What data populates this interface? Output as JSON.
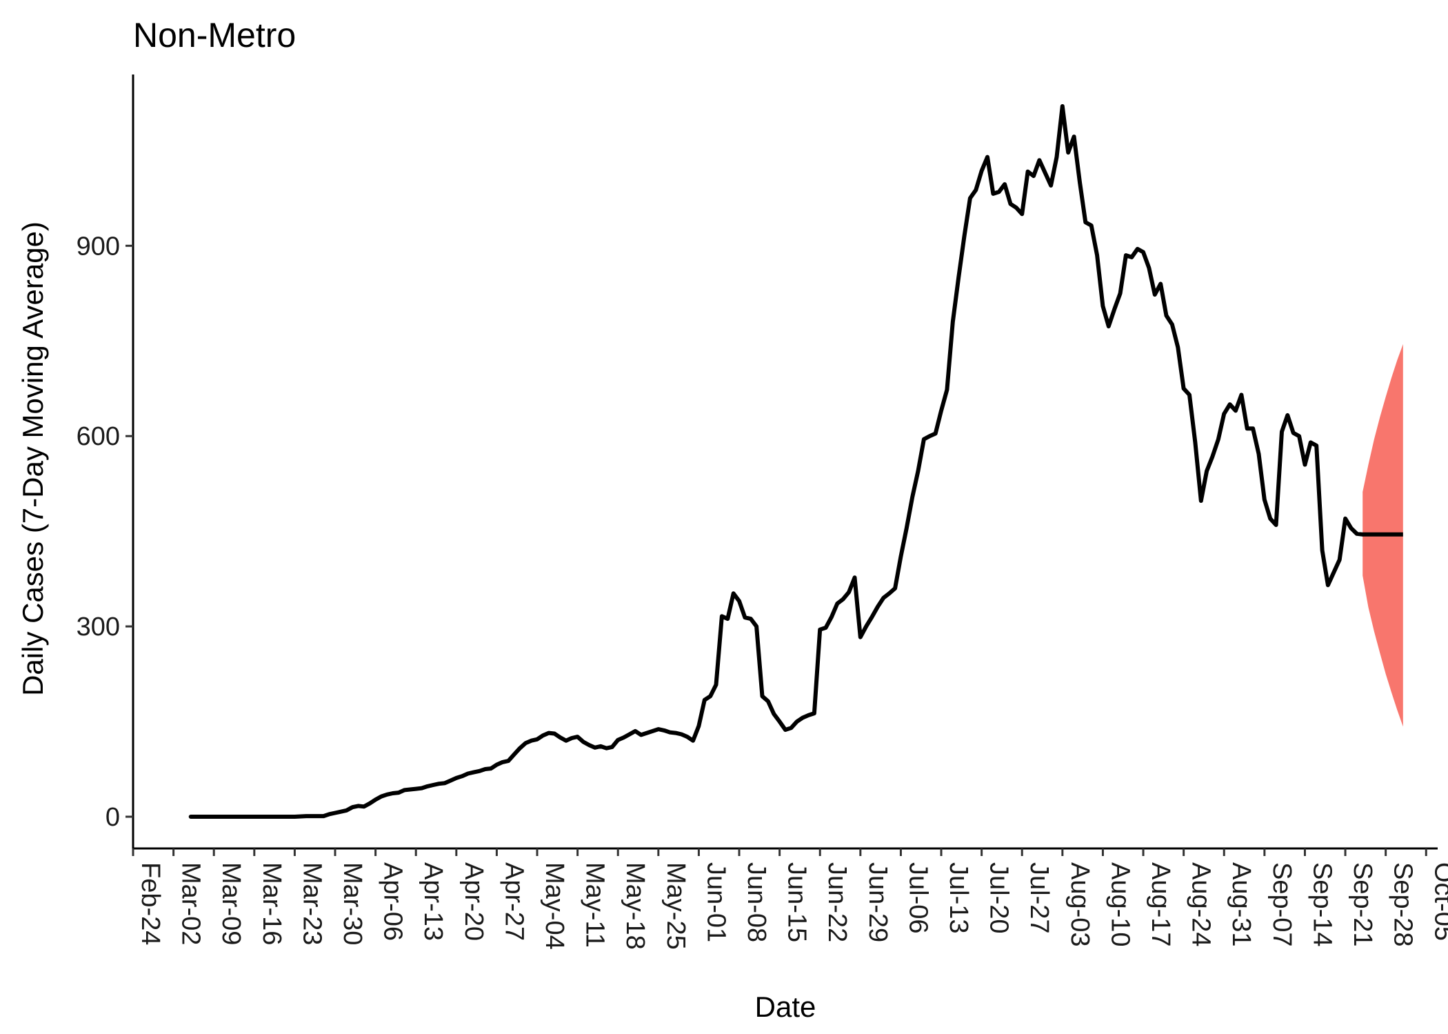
{
  "chart_data": {
    "type": "line",
    "title": "Non-Metro",
    "xlabel": "Date",
    "ylabel": "Daily Cases (7-Day Moving Average)",
    "xlim": [
      "2020-02-24",
      "2020-10-07"
    ],
    "ylim": [
      -50,
      1170
    ],
    "yticks": [
      0,
      300,
      600,
      900
    ],
    "xtick_labels": [
      "Feb-24",
      "Mar-02",
      "Mar-09",
      "Mar-16",
      "Mar-23",
      "Mar-30",
      "Apr-06",
      "Apr-13",
      "Apr-20",
      "Apr-27",
      "May-04",
      "May-11",
      "May-18",
      "May-25",
      "Jun-01",
      "Jun-08",
      "Jun-15",
      "Jun-22",
      "Jun-29",
      "Jul-06",
      "Jul-13",
      "Jul-20",
      "Jul-27",
      "Aug-03",
      "Aug-10",
      "Aug-17",
      "Aug-24",
      "Aug-31",
      "Sep-07",
      "Sep-14",
      "Sep-21",
      "Sep-28",
      "Oct-05"
    ],
    "xtick_dates": [
      "2020-02-24",
      "2020-03-02",
      "2020-03-09",
      "2020-03-16",
      "2020-03-23",
      "2020-03-30",
      "2020-04-06",
      "2020-04-13",
      "2020-04-20",
      "2020-04-27",
      "2020-05-04",
      "2020-05-11",
      "2020-05-18",
      "2020-05-25",
      "2020-06-01",
      "2020-06-08",
      "2020-06-15",
      "2020-06-22",
      "2020-06-29",
      "2020-07-06",
      "2020-07-13",
      "2020-07-20",
      "2020-07-27",
      "2020-08-03",
      "2020-08-10",
      "2020-08-17",
      "2020-08-24",
      "2020-08-31",
      "2020-09-07",
      "2020-09-14",
      "2020-09-21",
      "2020-09-28",
      "2020-10-05"
    ],
    "grid": false,
    "colors": {
      "line": "#000000",
      "band": "#F8766D",
      "axis": "#000000"
    },
    "series": [
      {
        "values": [
          [
            "2020-03-05",
            0
          ],
          [
            "2020-03-08",
            0
          ],
          [
            "2020-03-11",
            0
          ],
          [
            "2020-03-14",
            0
          ],
          [
            "2020-03-17",
            0
          ],
          [
            "2020-03-20",
            0
          ],
          [
            "2020-03-23",
            0
          ],
          [
            "2020-03-25",
            1
          ],
          [
            "2020-03-27",
            1
          ],
          [
            "2020-03-28",
            1
          ],
          [
            "2020-03-29",
            4
          ],
          [
            "2020-03-30",
            6
          ],
          [
            "2020-03-31",
            8
          ],
          [
            "2020-04-01",
            10
          ],
          [
            "2020-04-02",
            15
          ],
          [
            "2020-04-03",
            17
          ],
          [
            "2020-04-04",
            16
          ],
          [
            "2020-04-05",
            21
          ],
          [
            "2020-04-06",
            27
          ],
          [
            "2020-04-07",
            32
          ],
          [
            "2020-04-08",
            35
          ],
          [
            "2020-04-09",
            37
          ],
          [
            "2020-04-10",
            38
          ],
          [
            "2020-04-11",
            42
          ],
          [
            "2020-04-12",
            43
          ],
          [
            "2020-04-13",
            44
          ],
          [
            "2020-04-14",
            45
          ],
          [
            "2020-04-15",
            48
          ],
          [
            "2020-04-16",
            50
          ],
          [
            "2020-04-17",
            52
          ],
          [
            "2020-04-18",
            53
          ],
          [
            "2020-04-19",
            57
          ],
          [
            "2020-04-20",
            61
          ],
          [
            "2020-04-21",
            64
          ],
          [
            "2020-04-22",
            68
          ],
          [
            "2020-04-23",
            70
          ],
          [
            "2020-04-24",
            72
          ],
          [
            "2020-04-25",
            75
          ],
          [
            "2020-04-26",
            76
          ],
          [
            "2020-04-27",
            82
          ],
          [
            "2020-04-28",
            86
          ],
          [
            "2020-04-29",
            88
          ],
          [
            "2020-04-30",
            98
          ],
          [
            "2020-05-01",
            108
          ],
          [
            "2020-05-02",
            116
          ],
          [
            "2020-05-03",
            120
          ],
          [
            "2020-05-04",
            122
          ],
          [
            "2020-05-05",
            128
          ],
          [
            "2020-05-06",
            132
          ],
          [
            "2020-05-07",
            131
          ],
          [
            "2020-05-08",
            125
          ],
          [
            "2020-05-09",
            120
          ],
          [
            "2020-05-10",
            124
          ],
          [
            "2020-05-11",
            126
          ],
          [
            "2020-05-12",
            118
          ],
          [
            "2020-05-13",
            113
          ],
          [
            "2020-05-14",
            109
          ],
          [
            "2020-05-15",
            111
          ],
          [
            "2020-05-16",
            108
          ],
          [
            "2020-05-17",
            110
          ],
          [
            "2020-05-18",
            121
          ],
          [
            "2020-05-19",
            125
          ],
          [
            "2020-05-20",
            130
          ],
          [
            "2020-05-21",
            135
          ],
          [
            "2020-05-22",
            129
          ],
          [
            "2020-05-23",
            132
          ],
          [
            "2020-05-24",
            135
          ],
          [
            "2020-05-25",
            138
          ],
          [
            "2020-05-26",
            136
          ],
          [
            "2020-05-27",
            133
          ],
          [
            "2020-05-28",
            132
          ],
          [
            "2020-05-29",
            130
          ],
          [
            "2020-05-30",
            126
          ],
          [
            "2020-05-31",
            120
          ],
          [
            "2020-06-01",
            143
          ],
          [
            "2020-06-02",
            184
          ],
          [
            "2020-06-03",
            190
          ],
          [
            "2020-06-04",
            208
          ],
          [
            "2020-06-05",
            316
          ],
          [
            "2020-06-06",
            312
          ],
          [
            "2020-06-07",
            352
          ],
          [
            "2020-06-08",
            340
          ],
          [
            "2020-06-09",
            314
          ],
          [
            "2020-06-10",
            312
          ],
          [
            "2020-06-11",
            300
          ],
          [
            "2020-06-12",
            190
          ],
          [
            "2020-06-13",
            182
          ],
          [
            "2020-06-14",
            162
          ],
          [
            "2020-06-15",
            150
          ],
          [
            "2020-06-16",
            137
          ],
          [
            "2020-06-17",
            140
          ],
          [
            "2020-06-18",
            150
          ],
          [
            "2020-06-19",
            156
          ],
          [
            "2020-06-20",
            160
          ],
          [
            "2020-06-21",
            163
          ],
          [
            "2020-06-22",
            295
          ],
          [
            "2020-06-23",
            298
          ],
          [
            "2020-06-24",
            315
          ],
          [
            "2020-06-25",
            336
          ],
          [
            "2020-06-26",
            343
          ],
          [
            "2020-06-27",
            354
          ],
          [
            "2020-06-28",
            377
          ],
          [
            "2020-06-29",
            283
          ],
          [
            "2020-06-30",
            300
          ],
          [
            "2020-07-01",
            315
          ],
          [
            "2020-07-02",
            331
          ],
          [
            "2020-07-03",
            345
          ],
          [
            "2020-07-04",
            352
          ],
          [
            "2020-07-05",
            360
          ],
          [
            "2020-07-06",
            410
          ],
          [
            "2020-07-07",
            455
          ],
          [
            "2020-07-08",
            504
          ],
          [
            "2020-07-09",
            545
          ],
          [
            "2020-07-10",
            595
          ],
          [
            "2020-07-11",
            600
          ],
          [
            "2020-07-12",
            604
          ],
          [
            "2020-07-13",
            640
          ],
          [
            "2020-07-14",
            673
          ],
          [
            "2020-07-15",
            780
          ],
          [
            "2020-07-16",
            850
          ],
          [
            "2020-07-17",
            915
          ],
          [
            "2020-07-18",
            975
          ],
          [
            "2020-07-19",
            988
          ],
          [
            "2020-07-20",
            1018
          ],
          [
            "2020-07-21",
            1040
          ],
          [
            "2020-07-22",
            982
          ],
          [
            "2020-07-23",
            985
          ],
          [
            "2020-07-24",
            997
          ],
          [
            "2020-07-25",
            966
          ],
          [
            "2020-07-26",
            960
          ],
          [
            "2020-07-27",
            950
          ],
          [
            "2020-07-28",
            1017
          ],
          [
            "2020-07-29",
            1010
          ],
          [
            "2020-07-30",
            1035
          ],
          [
            "2020-07-31",
            1015
          ],
          [
            "2020-08-01",
            995
          ],
          [
            "2020-08-02",
            1040
          ],
          [
            "2020-08-03",
            1120
          ],
          [
            "2020-08-04",
            1047
          ],
          [
            "2020-08-05",
            1072
          ],
          [
            "2020-08-06",
            1000
          ],
          [
            "2020-08-07",
            937
          ],
          [
            "2020-08-08",
            932
          ],
          [
            "2020-08-09",
            885
          ],
          [
            "2020-08-10",
            805
          ],
          [
            "2020-08-11",
            773
          ],
          [
            "2020-08-12",
            800
          ],
          [
            "2020-08-13",
            825
          ],
          [
            "2020-08-14",
            885
          ],
          [
            "2020-08-15",
            882
          ],
          [
            "2020-08-16",
            895
          ],
          [
            "2020-08-17",
            890
          ],
          [
            "2020-08-18",
            865
          ],
          [
            "2020-08-19",
            823
          ],
          [
            "2020-08-20",
            840
          ],
          [
            "2020-08-21",
            790
          ],
          [
            "2020-08-22",
            776
          ],
          [
            "2020-08-23",
            740
          ],
          [
            "2020-08-24",
            675
          ],
          [
            "2020-08-25",
            665
          ],
          [
            "2020-08-26",
            590
          ],
          [
            "2020-08-27",
            498
          ],
          [
            "2020-08-28",
            545
          ],
          [
            "2020-08-29",
            568
          ],
          [
            "2020-08-30",
            595
          ],
          [
            "2020-08-31",
            635
          ],
          [
            "2020-09-01",
            650
          ],
          [
            "2020-09-02",
            640
          ],
          [
            "2020-09-03",
            665
          ],
          [
            "2020-09-04",
            612
          ],
          [
            "2020-09-05",
            612
          ],
          [
            "2020-09-06",
            572
          ],
          [
            "2020-09-07",
            500
          ],
          [
            "2020-09-08",
            470
          ],
          [
            "2020-09-09",
            460
          ],
          [
            "2020-09-10",
            607
          ],
          [
            "2020-09-11",
            633
          ],
          [
            "2020-09-12",
            605
          ],
          [
            "2020-09-13",
            600
          ],
          [
            "2020-09-14",
            555
          ],
          [
            "2020-09-15",
            590
          ],
          [
            "2020-09-16",
            585
          ],
          [
            "2020-09-17",
            420
          ],
          [
            "2020-09-18",
            365
          ],
          [
            "2020-09-19",
            385
          ],
          [
            "2020-09-20",
            405
          ],
          [
            "2020-09-21",
            470
          ],
          [
            "2020-09-22",
            455
          ],
          [
            "2020-09-23",
            446
          ],
          [
            "2020-09-24",
            445
          ]
        ]
      }
    ],
    "forecast": {
      "x_start": "2020-09-24",
      "x_end": "2020-10-01",
      "value": 445,
      "band": [
        [
          "2020-09-24",
          380,
          512
        ],
        [
          "2020-09-25",
          330,
          555
        ],
        [
          "2020-09-26",
          292,
          595
        ],
        [
          "2020-09-27",
          258,
          630
        ],
        [
          "2020-09-28",
          225,
          662
        ],
        [
          "2020-09-29",
          196,
          692
        ],
        [
          "2020-09-30",
          168,
          720
        ],
        [
          "2020-10-01",
          142,
          745
        ]
      ]
    }
  }
}
